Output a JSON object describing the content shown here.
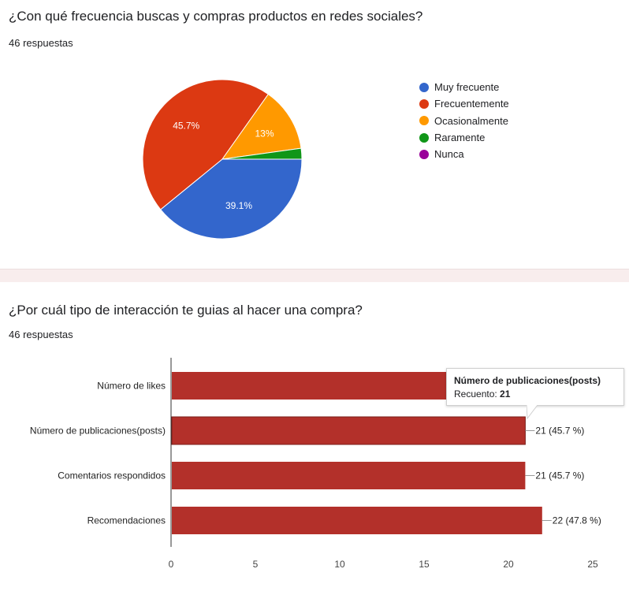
{
  "questions": [
    {
      "title": "¿Con qué frecuencia buscas y compras productos en redes sociales?",
      "responses": "46 respuestas"
    },
    {
      "title": "¿Por cuál tipo de interacción te guias al hacer una compra?",
      "responses": "46 respuestas"
    }
  ],
  "chart_data": [
    {
      "type": "pie",
      "categories": [
        "Muy frecuente",
        "Frecuentemente",
        "Ocasionalmente",
        "Raramente",
        "Nunca"
      ],
      "values": [
        39.1,
        45.7,
        13.0,
        2.2,
        0
      ],
      "labels": [
        "39.1%",
        "45.7%",
        "13%",
        "",
        ""
      ],
      "colors": [
        "#3366cc",
        "#dc3912",
        "#ff9900",
        "#109618",
        "#990099"
      ],
      "legend_position": "right"
    },
    {
      "type": "bar",
      "orientation": "horizontal",
      "categories": [
        "Número de likes",
        "Número de publicaciones(posts)",
        "Comentarios respondidos",
        "Recomendaciones"
      ],
      "values": [
        21,
        21,
        21,
        22
      ],
      "value_labels": [
        "",
        "21 (45.7 %)",
        "21 (45.7 %)",
        "22 (47.8 %)"
      ],
      "xticks": [
        "0",
        "5",
        "10",
        "15",
        "20",
        "25"
      ],
      "xlim": [
        0,
        25
      ],
      "color": "#b3302a",
      "grid": false
    }
  ],
  "tooltip": {
    "title": "Número de publicaciones(posts)",
    "label": "Recuento: ",
    "value": "21"
  }
}
